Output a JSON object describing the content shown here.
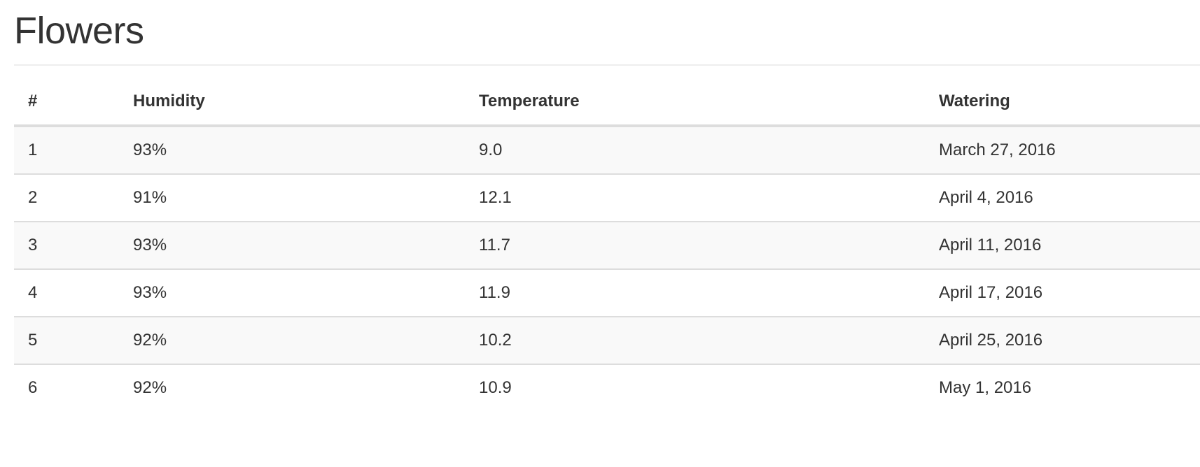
{
  "page": {
    "title": "Flowers"
  },
  "table": {
    "columns": [
      "#",
      "Humidity",
      "Temperature",
      "Watering"
    ],
    "rows": [
      {
        "num": "1",
        "humidity": "93%",
        "temperature": "9.0",
        "watering": "March 27, 2016"
      },
      {
        "num": "2",
        "humidity": "91%",
        "temperature": "12.1",
        "watering": "April 4, 2016"
      },
      {
        "num": "3",
        "humidity": "93%",
        "temperature": "11.7",
        "watering": "April 11, 2016"
      },
      {
        "num": "4",
        "humidity": "93%",
        "temperature": "11.9",
        "watering": "April 17, 2016"
      },
      {
        "num": "5",
        "humidity": "92%",
        "temperature": "10.2",
        "watering": "April 25, 2016"
      },
      {
        "num": "6",
        "humidity": "92%",
        "temperature": "10.9",
        "watering": "May 1, 2016"
      }
    ]
  },
  "colors": {
    "text": "#333333",
    "stripe": "#f9f9f9",
    "border": "#dddddd"
  }
}
